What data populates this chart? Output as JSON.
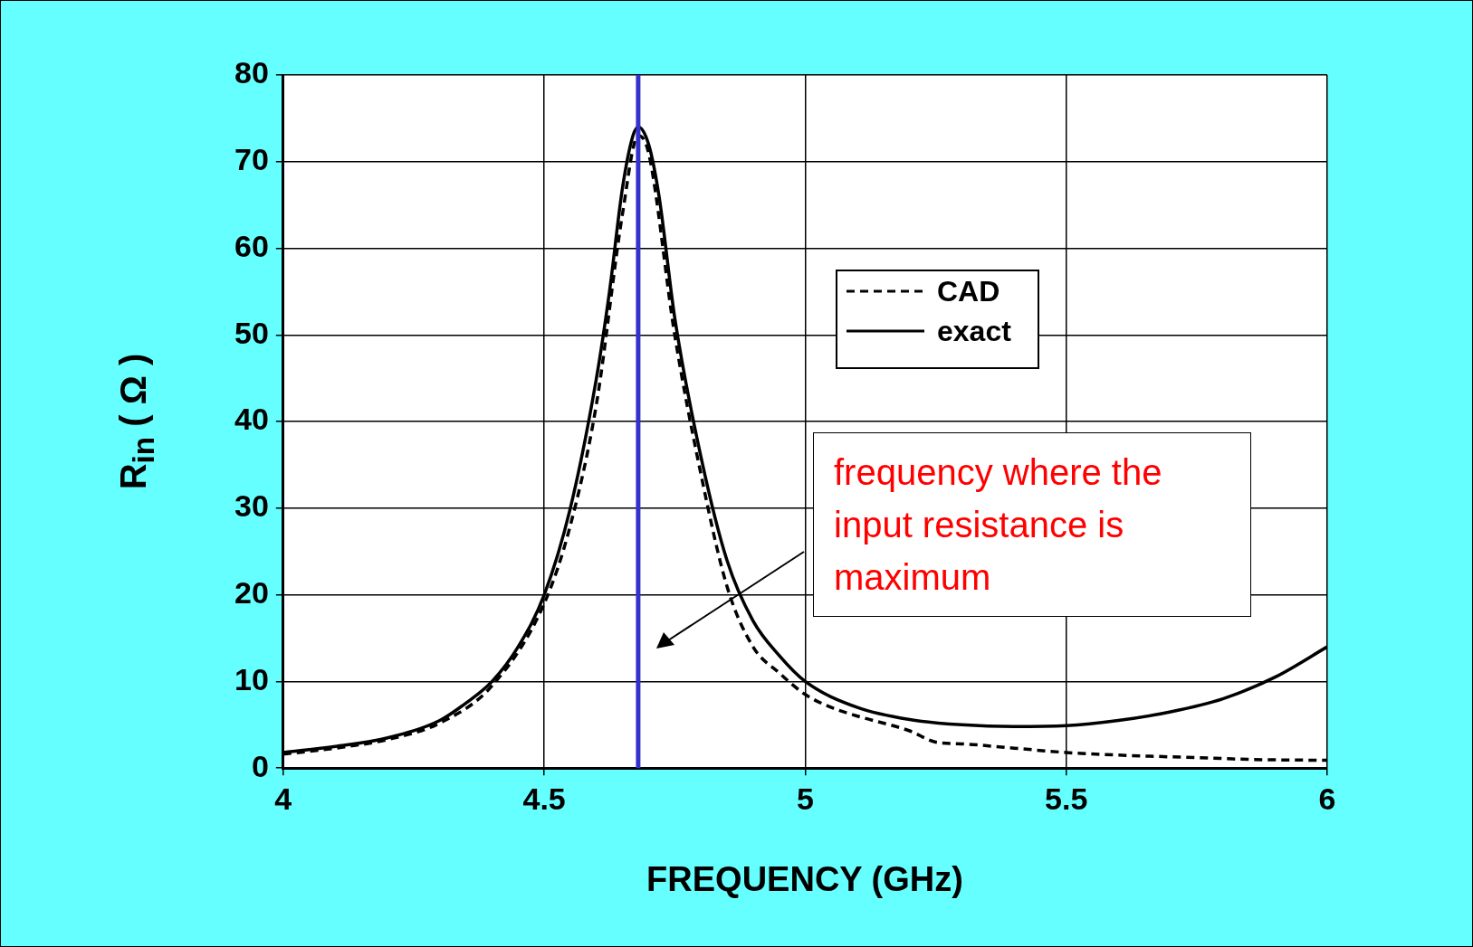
{
  "chart_data": {
    "type": "line",
    "xlabel": "FREQUENCY  (GHz)",
    "ylabel": "R$_{in}$  ( Ω )",
    "xlim": [
      4,
      6
    ],
    "xticks": [
      4,
      4.5,
      5,
      5.5,
      6
    ],
    "ylim": [
      0,
      80
    ],
    "yticks": [
      0,
      10,
      20,
      30,
      40,
      50,
      60,
      70,
      80
    ],
    "grid": true,
    "legend": "right",
    "marker": "none",
    "series": [
      {
        "name": "CAD",
        "color": "#000000",
        "line_style": "dashed",
        "x": [
          4.0,
          4.1,
          4.2,
          4.3,
          4.4,
          4.5,
          4.55,
          4.6,
          4.65,
          4.68,
          4.7,
          4.75,
          4.8,
          4.85,
          4.9,
          4.95,
          5.0,
          5.05,
          5.1,
          5.2,
          5.25,
          5.3,
          5.4,
          5.5,
          5.6,
          5.7,
          5.8,
          5.85,
          6.0
        ],
        "values": [
          1.6,
          2.3,
          3.3,
          5.2,
          9.5,
          19,
          28,
          42,
          64,
          73,
          71,
          50,
          34,
          21,
          14,
          11,
          8.5,
          7,
          6,
          4.3,
          3,
          2.8,
          2.3,
          1.8,
          1.5,
          1.3,
          1.1,
          1,
          0.9
        ]
      },
      {
        "name": "exact",
        "color": "#000000",
        "line_style": "solid",
        "x": [
          4.0,
          4.1,
          4.2,
          4.3,
          4.35,
          4.4,
          4.45,
          4.5,
          4.55,
          4.6,
          4.625,
          4.65,
          4.67,
          4.68,
          4.7,
          4.72,
          4.75,
          4.8,
          4.85,
          4.9,
          4.95,
          5.0,
          5.1,
          5.2,
          5.3,
          5.4,
          5.5,
          5.6,
          5.7,
          5.8,
          5.9,
          6.0
        ],
        "values": [
          1.8,
          2.5,
          3.5,
          5.5,
          7.5,
          10,
          14,
          20,
          30,
          45,
          55,
          67,
          73,
          74,
          72,
          66,
          52,
          36,
          24,
          17,
          13,
          10,
          7,
          5.6,
          5,
          4.8,
          4.9,
          5.5,
          6.5,
          8,
          10.5,
          14
        ]
      }
    ],
    "ref_lines": [
      {
        "axis": "x",
        "value": 4.68,
        "color": "#3333cc"
      }
    ],
    "annotations": [
      "frequency where the input resistance is maximum"
    ]
  }
}
